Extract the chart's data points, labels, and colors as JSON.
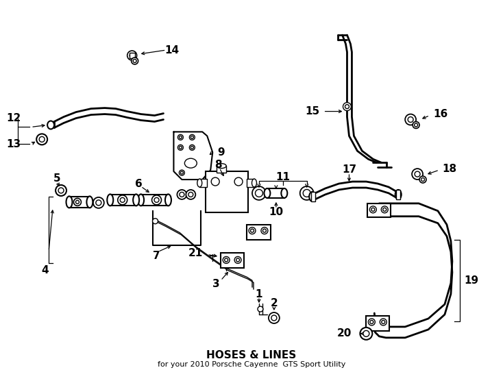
{
  "title": "HOSES & LINES",
  "subtitle": "for your 2010 Porsche Cayenne  GTS Sport Utility",
  "background_color": "#ffffff",
  "line_color": "#000000",
  "text_color": "#000000",
  "font_size_title": 11,
  "font_size_subtitle": 8,
  "font_size_label": 11
}
